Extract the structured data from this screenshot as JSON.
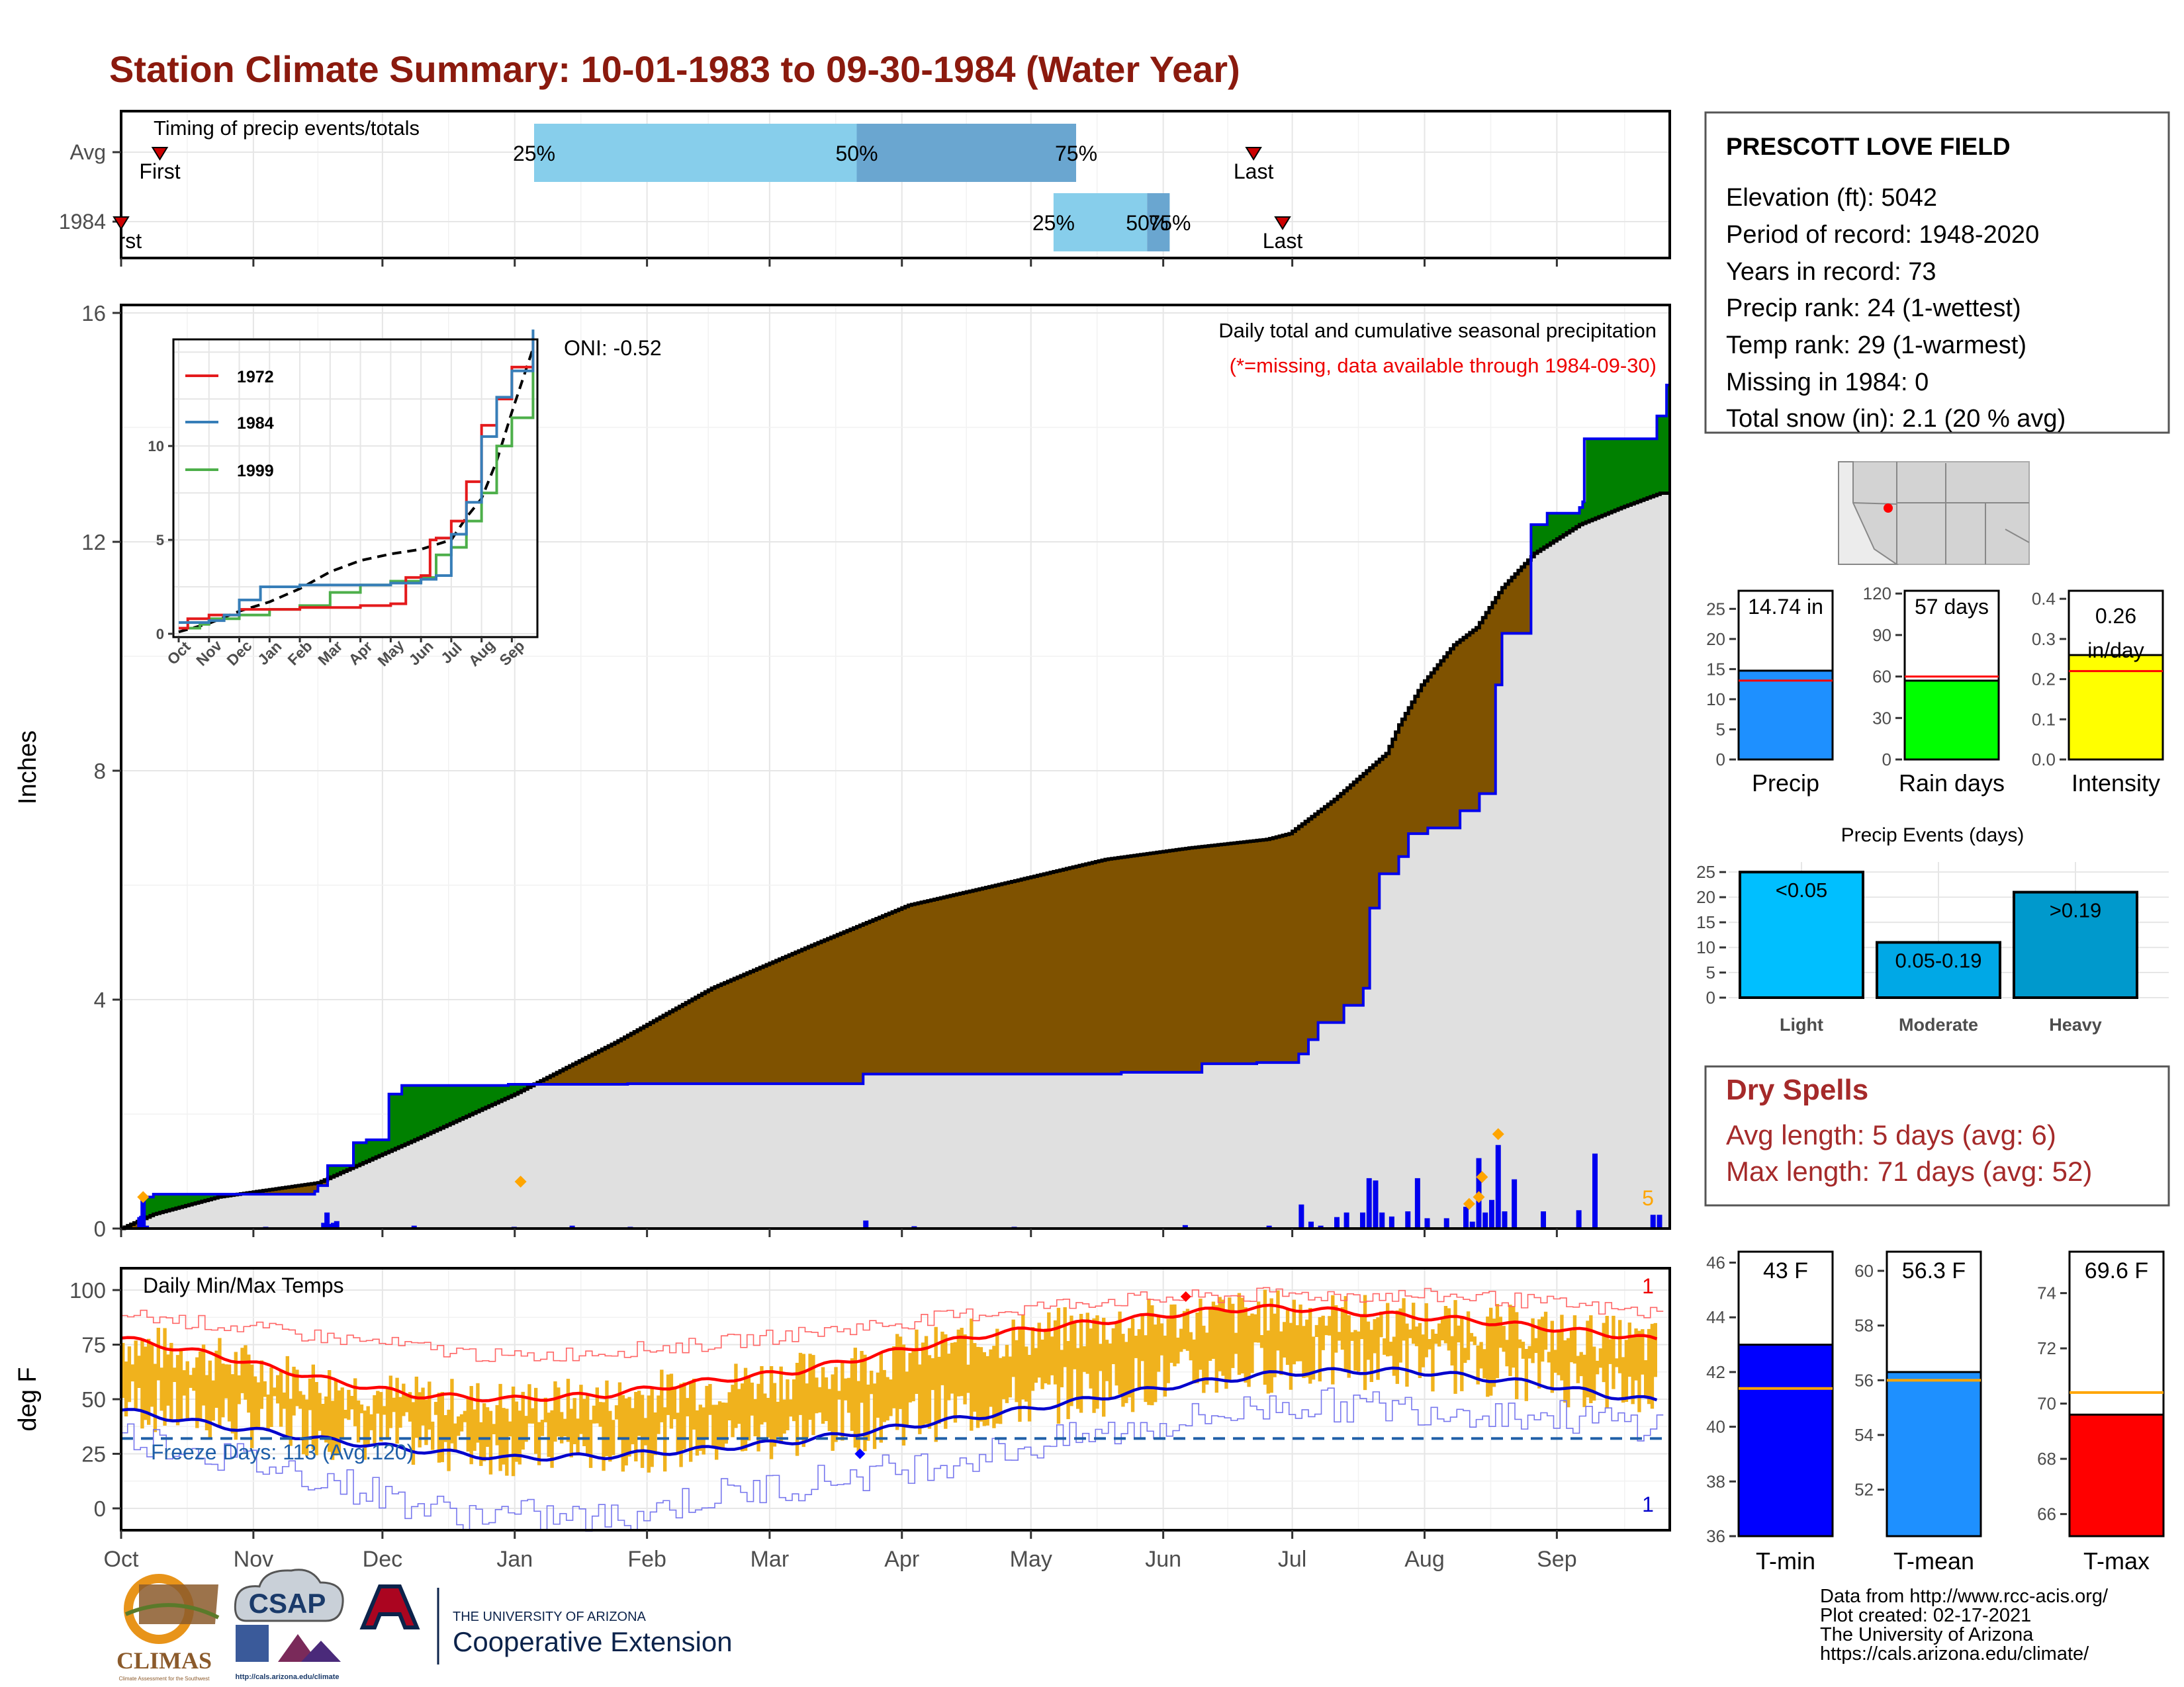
{
  "title": "Station Climate Summary: 10-01-1983 to 09-30-1984 (Water Year)",
  "colors": {
    "title": "#8b1a0e",
    "brown": "#7f5200",
    "green": "#008000",
    "blue_line": "#0000ee",
    "avg_fill": "#e0e0e0",
    "temp_bar": "#f0b21d",
    "tmax_line": "#ff0000",
    "tmin_line": "#0000cc",
    "freeze_line": "#1f5fa8",
    "marker_orange": "#ffa500",
    "dry_red": "#a52a2a",
    "q_light": "#87ceeb",
    "q_mid": "#6aa6d0"
  },
  "timing": {
    "heading": "Timing of precip events/totals",
    "rows": [
      "Avg",
      "1984"
    ],
    "avg_labels": {
      "first": "First",
      "q25": "25%",
      "q50": "50%",
      "q75": "75%",
      "last": "Last"
    },
    "yr_labels": {
      "first": "First",
      "q25": "25%",
      "q50": "50%",
      "q75": "75%",
      "last": "Last"
    },
    "avg_day": {
      "first": 12,
      "q25": 128,
      "q50": 228,
      "q75": 296,
      "last": 351
    },
    "yr_day": {
      "first": 0,
      "q25": 289,
      "q50": 318,
      "q75": 325,
      "last": 360
    }
  },
  "precip": {
    "ylabel": "Inches",
    "header": "Daily total and cumulative seasonal precipitation",
    "note": "(*=missing, data available through 1984-09-30)",
    "oni": "ONI: -0.52",
    "count_label": "5",
    "yticks": [
      "0",
      "4",
      "8",
      "12",
      "16"
    ],
    "ylim": [
      0,
      16
    ],
    "avg_cum": [
      [
        0,
        0
      ],
      [
        10,
        0.25
      ],
      [
        30,
        0.55
      ],
      [
        61,
        0.8
      ],
      [
        91,
        1.55
      ],
      [
        122,
        2.35
      ],
      [
        153,
        3.25
      ],
      [
        183,
        4.2
      ],
      [
        214,
        4.95
      ],
      [
        244,
        5.65
      ],
      [
        275,
        6.05
      ],
      [
        305,
        6.45
      ],
      [
        331,
        6.65
      ],
      [
        355,
        6.8
      ],
      [
        362,
        6.9
      ],
      [
        376,
        7.5
      ],
      [
        392,
        8.3
      ],
      [
        396,
        8.8
      ],
      [
        403,
        9.5
      ],
      [
        413,
        10.2
      ],
      [
        420,
        10.5
      ],
      [
        428,
        11.2
      ],
      [
        438,
        11.8
      ],
      [
        452,
        12.3
      ],
      [
        465,
        12.6
      ],
      [
        477,
        12.85
      ]
    ],
    "yr_cum": [
      [
        0,
        0
      ],
      [
        6,
        0.2
      ],
      [
        7,
        0.55
      ],
      [
        10,
        0.6
      ],
      [
        45,
        0.6
      ],
      [
        60,
        0.65
      ],
      [
        61,
        0.75
      ],
      [
        64,
        1.1
      ],
      [
        72,
        1.5
      ],
      [
        76,
        1.55
      ],
      [
        83,
        2.35
      ],
      [
        87,
        2.5
      ],
      [
        120,
        2.52
      ],
      [
        157,
        2.53
      ],
      [
        210,
        2.53
      ],
      [
        230,
        2.7
      ],
      [
        271,
        2.7
      ],
      [
        310,
        2.73
      ],
      [
        321,
        2.73
      ],
      [
        335,
        2.88
      ],
      [
        352,
        2.9
      ],
      [
        365,
        3.05
      ],
      [
        368,
        3.3
      ],
      [
        371,
        3.6
      ],
      [
        379,
        3.9
      ],
      [
        385,
        4.2
      ],
      [
        387,
        5.6
      ],
      [
        390,
        6.2
      ],
      [
        396,
        6.5
      ],
      [
        399,
        6.9
      ],
      [
        405,
        7.0
      ],
      [
        415,
        7.3
      ],
      [
        421,
        7.6
      ],
      [
        426,
        9.5
      ],
      [
        428,
        10.4
      ],
      [
        437,
        12.3
      ],
      [
        442,
        12.5
      ],
      [
        452,
        12.6
      ],
      [
        453,
        12.7
      ],
      [
        453.5,
        13.8
      ],
      [
        470,
        13.8
      ],
      [
        476,
        14.2
      ],
      [
        479,
        14.74
      ]
    ],
    "daily": [
      [
        5,
        0.2
      ],
      [
        6,
        0.55
      ],
      [
        7,
        0.05
      ],
      [
        44,
        0.03
      ],
      [
        62,
        0.1
      ],
      [
        63,
        0.28
      ],
      [
        64,
        0.08
      ],
      [
        65,
        0.1
      ],
      [
        66,
        0.13
      ],
      [
        90,
        0.05
      ],
      [
        121,
        0.03
      ],
      [
        139,
        0.05
      ],
      [
        157,
        0.03
      ],
      [
        189,
        0.02
      ],
      [
        230,
        0.14
      ],
      [
        245,
        0.04
      ],
      [
        276,
        0.03
      ],
      [
        329,
        0.06
      ],
      [
        355,
        0.05
      ],
      [
        365,
        0.42
      ],
      [
        368,
        0.12
      ],
      [
        371,
        0.05
      ],
      [
        376,
        0.2
      ],
      [
        379,
        0.28
      ],
      [
        384,
        0.28
      ],
      [
        386,
        0.88
      ],
      [
        388,
        0.84
      ],
      [
        390,
        0.28
      ],
      [
        393,
        0.21
      ],
      [
        398,
        0.3
      ],
      [
        401,
        0.88
      ],
      [
        404,
        0.18
      ],
      [
        410,
        0.18
      ],
      [
        416,
        0.38
      ],
      [
        418,
        0.12
      ],
      [
        420,
        1.23
      ],
      [
        422,
        0.28
      ],
      [
        424,
        0.5
      ],
      [
        426,
        1.46
      ],
      [
        428,
        0.3
      ],
      [
        431,
        0.86
      ],
      [
        440,
        0.3
      ],
      [
        451,
        0.32
      ],
      [
        456,
        1.31
      ],
      [
        474,
        0.24
      ],
      [
        476,
        0.24
      ]
    ],
    "markers": [
      [
        6,
        0.55
      ],
      [
        123,
        0.82
      ],
      [
        417,
        0.43
      ],
      [
        420,
        0.55
      ],
      [
        421,
        0.9
      ],
      [
        426,
        1.65
      ]
    ]
  },
  "temps": {
    "ylabel": "deg F",
    "heading": "Daily Min/Max Temps",
    "freeze_label": "Freeze Days: 113 (Avg.120)",
    "record_high_count": "1",
    "record_low_count": "1",
    "yticks": [
      "0",
      "25",
      "50",
      "75",
      "100"
    ],
    "ylim": [
      -10,
      110
    ],
    "freeze_threshold": 32,
    "avg_max": [
      [
        0,
        78
      ],
      [
        30,
        70
      ],
      [
        60,
        60
      ],
      [
        90,
        52
      ],
      [
        120,
        50
      ],
      [
        150,
        52
      ],
      [
        180,
        58
      ],
      [
        210,
        63
      ],
      [
        240,
        72
      ],
      [
        270,
        80
      ],
      [
        300,
        85
      ],
      [
        320,
        88
      ],
      [
        340,
        91
      ],
      [
        360,
        92
      ],
      [
        380,
        90
      ],
      [
        400,
        88
      ],
      [
        420,
        86
      ],
      [
        440,
        83
      ],
      [
        460,
        80
      ],
      [
        477,
        77
      ]
    ],
    "avg_min": [
      [
        0,
        45
      ],
      [
        30,
        38
      ],
      [
        60,
        32
      ],
      [
        90,
        27
      ],
      [
        120,
        23
      ],
      [
        150,
        24
      ],
      [
        180,
        27
      ],
      [
        210,
        31
      ],
      [
        240,
        37
      ],
      [
        270,
        43
      ],
      [
        300,
        50
      ],
      [
        330,
        57
      ],
      [
        360,
        62
      ],
      [
        380,
        63
      ],
      [
        400,
        63
      ],
      [
        420,
        60
      ],
      [
        440,
        57
      ],
      [
        460,
        52
      ],
      [
        477,
        49
      ]
    ],
    "rec_max": [
      [
        0,
        92
      ],
      [
        60,
        82
      ],
      [
        120,
        72
      ],
      [
        180,
        78
      ],
      [
        240,
        88
      ],
      [
        300,
        98
      ],
      [
        360,
        101
      ],
      [
        420,
        100
      ],
      [
        477,
        92
      ]
    ],
    "rec_min": [
      [
        0,
        34
      ],
      [
        60,
        15
      ],
      [
        100,
        -2
      ],
      [
        150,
        -5
      ],
      [
        180,
        5
      ],
      [
        240,
        18
      ],
      [
        300,
        33
      ],
      [
        360,
        48
      ],
      [
        420,
        45
      ],
      [
        477,
        38
      ]
    ],
    "record_markers": [
      {
        "day": 330,
        "value": 97,
        "kind": "high"
      },
      {
        "day": 229,
        "value": 25,
        "kind": "low"
      }
    ]
  },
  "xaxis": {
    "months": [
      "Oct",
      "Nov",
      "Dec",
      "Jan",
      "Feb",
      "Mar",
      "Apr",
      "May",
      "Jun",
      "Jul",
      "Aug",
      "Sep"
    ],
    "month_start_days": [
      0,
      41,
      81,
      122,
      163,
      201,
      242,
      282,
      323,
      363,
      404,
      445
    ]
  },
  "inset": {
    "years": [
      "1972",
      "1984",
      "1999"
    ],
    "colors": [
      "#e41a1c",
      "#377eb8",
      "#4daf4a"
    ],
    "yticks": [
      "0",
      "5",
      "10"
    ],
    "ylim": [
      0,
      15.5
    ],
    "months": [
      "Oct",
      "Nov",
      "Dec",
      "Jan",
      "Feb",
      "Mar",
      "Apr",
      "May",
      "Jun",
      "Jul",
      "Aug",
      "Sep"
    ],
    "avg": [
      [
        0,
        0.1
      ],
      [
        1,
        0.55
      ],
      [
        2,
        1.2
      ],
      [
        3,
        1.7
      ],
      [
        4,
        2.4
      ],
      [
        5,
        3.3
      ],
      [
        6,
        3.9
      ],
      [
        7,
        4.25
      ],
      [
        8,
        4.5
      ],
      [
        9,
        5.0
      ],
      [
        9.5,
        6.2
      ],
      [
        10,
        7.2
      ],
      [
        10.5,
        9.2
      ],
      [
        11,
        11.8
      ],
      [
        11.7,
        15.2
      ]
    ],
    "y1972": [
      [
        0,
        0.3
      ],
      [
        0.3,
        0.8
      ],
      [
        1,
        1.0
      ],
      [
        2,
        1.3
      ],
      [
        3,
        1.3
      ],
      [
        4,
        1.4
      ],
      [
        5,
        1.4
      ],
      [
        6,
        1.5
      ],
      [
        7,
        1.6
      ],
      [
        7.5,
        3.0
      ],
      [
        8,
        3.1
      ],
      [
        8.3,
        5.0
      ],
      [
        8.5,
        5.1
      ],
      [
        9,
        6.0
      ],
      [
        9.5,
        8.1
      ],
      [
        10,
        11.1
      ],
      [
        10.5,
        12.5
      ],
      [
        11,
        14.2
      ],
      [
        11.7,
        15.8
      ]
    ],
    "y1984": [
      [
        0,
        0.6
      ],
      [
        1,
        0.7
      ],
      [
        1.5,
        1.0
      ],
      [
        2,
        1.8
      ],
      [
        2.7,
        2.5
      ],
      [
        4,
        2.6
      ],
      [
        6,
        2.6
      ],
      [
        7,
        2.7
      ],
      [
        8,
        2.9
      ],
      [
        8.5,
        3.1
      ],
      [
        9,
        5.3
      ],
      [
        9.5,
        7.0
      ],
      [
        10,
        10.5
      ],
      [
        10.5,
        12.6
      ],
      [
        11,
        14.0
      ],
      [
        11.7,
        16.2
      ]
    ],
    "y1999": [
      [
        0,
        0.3
      ],
      [
        0.7,
        0.5
      ],
      [
        1,
        0.8
      ],
      [
        2,
        1.0
      ],
      [
        3,
        1.3
      ],
      [
        4,
        1.5
      ],
      [
        5,
        2.2
      ],
      [
        6,
        2.6
      ],
      [
        7,
        2.8
      ],
      [
        8,
        3.0
      ],
      [
        8.5,
        4.2
      ],
      [
        9,
        4.6
      ],
      [
        9.5,
        6.0
      ],
      [
        10,
        7.5
      ],
      [
        10.5,
        10.0
      ],
      [
        11,
        11.5
      ],
      [
        11.7,
        15.0
      ]
    ]
  },
  "station": {
    "name": "PRESCOTT LOVE FIELD",
    "lines": [
      "Elevation (ft): 5042",
      "Period of record: 1948-2020",
      "Years in record: 73",
      "Precip rank: 24 (1-wettest)",
      "Temp rank: 29 (1-warmest)",
      "Missing in 1984: 0",
      "Total snow (in): 2.1 (20 % avg)"
    ]
  },
  "mini_bars": [
    {
      "label": "Precip",
      "value": 14.74,
      "avg": 13.1,
      "display": "14.74 in",
      "ylim": [
        0,
        28
      ],
      "ticks": [
        "0",
        "5",
        "10",
        "15",
        "20",
        "25"
      ],
      "tick_values": [
        0,
        5,
        10,
        15,
        20,
        25
      ],
      "color": "#1e90ff"
    },
    {
      "label": "Rain days",
      "value": 57,
      "avg": 60,
      "display": "57 days",
      "ylim": [
        0,
        122
      ],
      "ticks": [
        "0",
        "30",
        "60",
        "90",
        "120"
      ],
      "tick_values": [
        0,
        30,
        60,
        90,
        120
      ],
      "color": "#00ff00"
    },
    {
      "label": "Intensity",
      "value": 0.26,
      "avg": 0.22,
      "display_a": "0.26",
      "display_b": "in/day",
      "ylim": [
        0,
        0.42
      ],
      "ticks": [
        "0.0",
        "0.1",
        "0.2",
        "0.3",
        "0.4"
      ],
      "tick_values": [
        0,
        0.1,
        0.2,
        0.3,
        0.4
      ],
      "color": "#ffff00"
    }
  ],
  "events": {
    "title": "Precip Events (days)",
    "categories": [
      "Light",
      "Moderate",
      "Heavy"
    ],
    "labels": [
      "<0.05",
      "0.05-0.19",
      ">0.19"
    ],
    "values": [
      25,
      11,
      21
    ],
    "colors": [
      "#00bfff",
      "#00a8e6",
      "#0099cc"
    ],
    "ylim": [
      0,
      27
    ],
    "ticks": [
      "0",
      "5",
      "10",
      "15",
      "20",
      "25"
    ],
    "tick_values": [
      0,
      5,
      10,
      15,
      20,
      25
    ]
  },
  "dry": {
    "title": "Dry Spells",
    "avg_line": "Avg length: 5 days (avg: 6)",
    "max_line": "Max length: 71 days (avg: 52)"
  },
  "temp_bars": [
    {
      "label": "T-min",
      "value": 43,
      "avg": 41.4,
      "display": "43 F",
      "ylim": [
        36,
        46.4
      ],
      "ticks": [
        "36",
        "38",
        "40",
        "42",
        "44",
        "46"
      ],
      "tick_values": [
        36,
        38,
        40,
        42,
        44,
        46
      ],
      "color": "#0000ff"
    },
    {
      "label": "T-mean",
      "value": 56.3,
      "avg": 56.0,
      "display": "56.3 F",
      "ylim": [
        50.3,
        60.7
      ],
      "ticks": [
        "52",
        "54",
        "56",
        "58",
        "60"
      ],
      "tick_values": [
        52,
        54,
        56,
        58,
        60
      ],
      "color": "#1e90ff"
    },
    {
      "label": "T-max",
      "value": 69.6,
      "avg": 70.4,
      "display": "69.6 F",
      "ylim": [
        65.2,
        75.5
      ],
      "ticks": [
        "66",
        "68",
        "70",
        "72",
        "74"
      ],
      "tick_values": [
        66,
        68,
        70,
        72,
        74
      ],
      "color": "#ff0000"
    }
  ],
  "footer": {
    "lines": [
      "Data from http://www.rcc-acis.org/",
      "Plot created: 02-17-2021",
      "The University of Arizona",
      "https://cals.arizona.edu/climate/"
    ],
    "climas": "CLIMAS",
    "climas_sub": "Climate Assessment for the Southwest",
    "csap": "CSAP",
    "csap_url": "http://cals.arizona.edu/climate",
    "ua_top": "THE UNIVERSITY OF ARIZONA",
    "ua_bottom": "Cooperative Extension"
  }
}
